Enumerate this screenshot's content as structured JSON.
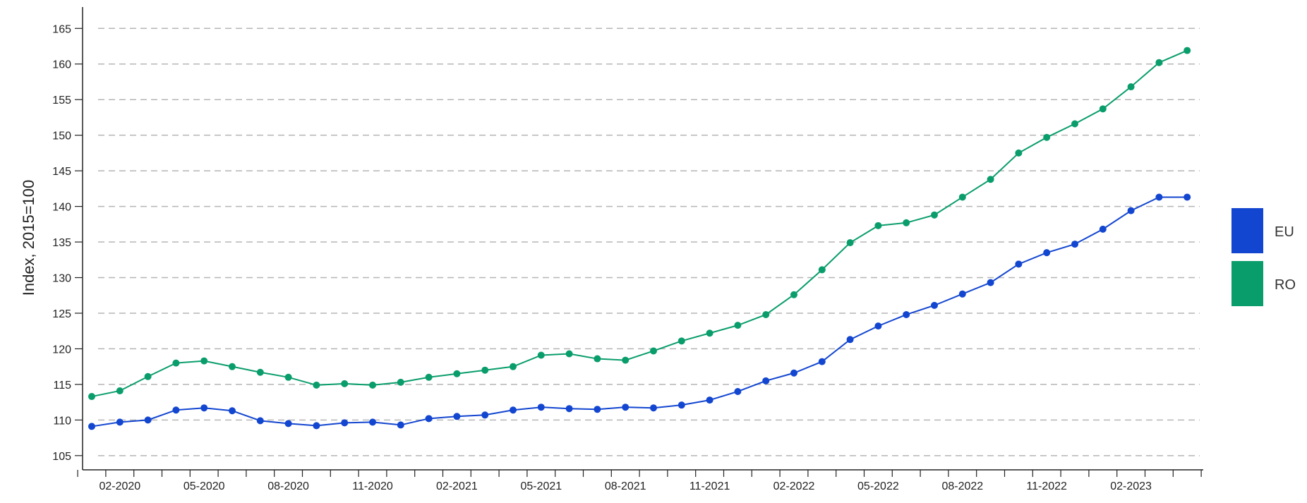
{
  "chart_data": {
    "type": "line",
    "ylabel": "Index, 2015=100",
    "ylim": [
      103,
      168
    ],
    "yticks": [
      105,
      110,
      115,
      120,
      125,
      130,
      135,
      140,
      145,
      150,
      155,
      160,
      165
    ],
    "grid": "horizontal dashed",
    "legend_position": "right",
    "x": [
      "01-2020",
      "02-2020",
      "03-2020",
      "04-2020",
      "05-2020",
      "06-2020",
      "07-2020",
      "08-2020",
      "09-2020",
      "10-2020",
      "11-2020",
      "12-2020",
      "01-2021",
      "02-2021",
      "03-2021",
      "04-2021",
      "05-2021",
      "06-2021",
      "07-2021",
      "08-2021",
      "09-2021",
      "10-2021",
      "11-2021",
      "12-2021",
      "01-2022",
      "02-2022",
      "03-2022",
      "04-2022",
      "05-2022",
      "06-2022",
      "07-2022",
      "08-2022",
      "09-2022",
      "10-2022",
      "11-2022",
      "12-2022",
      "01-2023",
      "02-2023",
      "03-2023",
      "04-2023"
    ],
    "xtick_labels": [
      "02-2020",
      "05-2020",
      "08-2020",
      "11-2020",
      "02-2021",
      "05-2021",
      "08-2021",
      "11-2021",
      "02-2022",
      "05-2022",
      "08-2022",
      "11-2022",
      "02-2023"
    ],
    "series": [
      {
        "name": "EU",
        "color": "#1346d0",
        "values": [
          109.1,
          109.7,
          110.0,
          111.4,
          111.7,
          111.3,
          109.9,
          109.5,
          109.2,
          109.6,
          109.7,
          109.3,
          110.2,
          110.5,
          110.7,
          111.4,
          111.8,
          111.6,
          111.5,
          111.8,
          111.7,
          112.1,
          112.8,
          114.0,
          115.5,
          116.6,
          118.2,
          121.3,
          123.2,
          124.8,
          126.1,
          127.7,
          129.3,
          131.9,
          133.5,
          134.7,
          136.8,
          139.4,
          141.3,
          141.3
        ]
      },
      {
        "name": "RO",
        "color": "#0a9d6c",
        "values": [
          113.3,
          114.1,
          116.1,
          118.0,
          118.3,
          117.5,
          116.7,
          116.0,
          114.9,
          115.1,
          114.9,
          115.3,
          116.0,
          116.5,
          117.0,
          117.5,
          119.1,
          119.3,
          118.6,
          118.4,
          119.7,
          121.1,
          122.2,
          123.3,
          124.8,
          127.6,
          131.1,
          134.9,
          137.3,
          137.7,
          138.8,
          141.3,
          143.8,
          147.5,
          149.7,
          151.6,
          153.7,
          156.8,
          160.2,
          161.9
        ]
      }
    ]
  }
}
